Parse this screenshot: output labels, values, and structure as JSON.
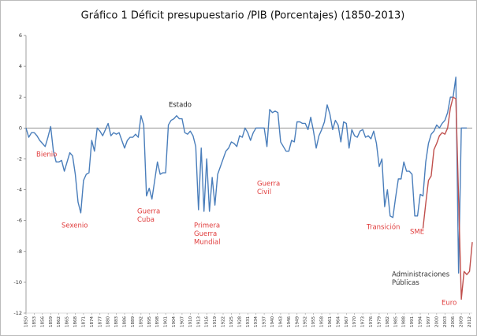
{
  "chart_data": {
    "type": "line",
    "title": "Gráfico 1 Déficit presupuestario /PIB (Porcentajes) (1850-2013)",
    "x": [
      1850,
      1851,
      1852,
      1853,
      1854,
      1855,
      1856,
      1857,
      1858,
      1859,
      1860,
      1861,
      1862,
      1863,
      1864,
      1865,
      1866,
      1867,
      1868,
      1869,
      1870,
      1871,
      1872,
      1873,
      1874,
      1875,
      1876,
      1877,
      1878,
      1879,
      1880,
      1881,
      1882,
      1883,
      1884,
      1885,
      1886,
      1887,
      1888,
      1889,
      1890,
      1891,
      1892,
      1893,
      1894,
      1895,
      1896,
      1897,
      1898,
      1899,
      1900,
      1901,
      1902,
      1903,
      1904,
      1905,
      1906,
      1907,
      1908,
      1909,
      1910,
      1911,
      1912,
      1913,
      1914,
      1915,
      1916,
      1917,
      1918,
      1919,
      1920,
      1921,
      1922,
      1923,
      1924,
      1925,
      1926,
      1927,
      1928,
      1929,
      1930,
      1931,
      1932,
      1933,
      1934,
      1935,
      1936,
      1937,
      1938,
      1939,
      1940,
      1941,
      1942,
      1943,
      1944,
      1945,
      1946,
      1947,
      1948,
      1949,
      1950,
      1951,
      1952,
      1953,
      1954,
      1955,
      1956,
      1957,
      1958,
      1959,
      1960,
      1961,
      1962,
      1963,
      1964,
      1965,
      1966,
      1967,
      1968,
      1969,
      1970,
      1971,
      1972,
      1973,
      1974,
      1975,
      1976,
      1977,
      1978,
      1979,
      1980,
      1981,
      1982,
      1983,
      1984,
      1985,
      1986,
      1987,
      1988,
      1989,
      1990,
      1991,
      1992,
      1993,
      1994,
      1995,
      1996,
      1997,
      1998,
      1999,
      2000,
      2001,
      2002,
      2003,
      2004,
      2005,
      2006,
      2007,
      2008,
      2009,
      2010,
      2011,
      2012,
      2013
    ],
    "series": [
      {
        "color": "#4a7ebb",
        "values": [
          0,
          -0.6,
          -0.3,
          -0.3,
          -0.5,
          -0.8,
          -1.0,
          -1.2,
          -0.6,
          0.1,
          -1.5,
          -2.2,
          -2.2,
          -2.1,
          -2.8,
          -2.2,
          -1.6,
          -1.8,
          -3.0,
          -4.8,
          -5.5,
          -3.4,
          -3.0,
          -2.9,
          -0.8,
          -1.5,
          0,
          -0.2,
          -0.5,
          -0.1,
          0.3,
          -0.5,
          -0.3,
          -0.4,
          -0.3,
          -0.8,
          -1.3,
          -0.8,
          -0.6,
          -0.6,
          -0.4,
          -0.6,
          0.8,
          0.2,
          -4.4,
          -3.9,
          -4.6,
          -3.4,
          -2.2,
          -3.0,
          -2.9,
          -2.9,
          0.2,
          0.5,
          0.6,
          0.8,
          0.6,
          0.6,
          -0.3,
          -0.4,
          -0.2,
          -0.5,
          -1.2,
          -5.3,
          -1.3,
          -5.4,
          -2.0,
          -5.4,
          -3.2,
          -5.0,
          -3.0,
          -2.5,
          -2.0,
          -1.5,
          -1.3,
          -0.9,
          -1.0,
          -1.2,
          -0.5,
          -0.6,
          0,
          -0.3,
          -0.8,
          -0.3,
          0,
          0,
          0,
          0,
          -1.2,
          1.2,
          1.0,
          1.1,
          1.0,
          -0.9,
          -1.2,
          -1.5,
          -1.5,
          -0.8,
          -0.9,
          0.4,
          0.4,
          0.3,
          0.3,
          -0.1,
          0.7,
          -0.2,
          -1.3,
          -0.5,
          -0.1,
          0.4,
          1.5,
          0.9,
          -0.1,
          0.5,
          0.2,
          -0.9,
          0.4,
          0.3,
          -1.3,
          -0.1,
          -0.5,
          -0.6,
          -0.2,
          -0.1,
          -0.6,
          -0.5,
          -0.7,
          -0.2,
          -1.0,
          -2.5,
          -2.0,
          -5.1,
          -4.0,
          -5.7,
          -5.8,
          -4.5,
          -3.3,
          -3.3,
          -2.2,
          -2.8,
          -2.8,
          -3.0,
          -5.7,
          -5.7,
          -4.3,
          -4.4,
          -2.2,
          -1.0,
          -0.4,
          -0.2,
          0.2,
          0,
          0.3,
          0.5,
          1.0,
          2.0,
          2.0,
          3.3,
          -9.4,
          0,
          0,
          0,
          null,
          null
        ]
      },
      {
        "color": "#c0504d",
        "values": [
          null,
          null,
          null,
          null,
          null,
          null,
          null,
          null,
          null,
          null,
          null,
          null,
          null,
          null,
          null,
          null,
          null,
          null,
          null,
          null,
          null,
          null,
          null,
          null,
          null,
          null,
          null,
          null,
          null,
          null,
          null,
          null,
          null,
          null,
          null,
          null,
          null,
          null,
          null,
          null,
          null,
          null,
          null,
          null,
          null,
          null,
          null,
          null,
          null,
          null,
          null,
          null,
          null,
          null,
          null,
          null,
          null,
          null,
          null,
          null,
          null,
          null,
          null,
          null,
          null,
          null,
          null,
          null,
          null,
          null,
          null,
          null,
          null,
          null,
          null,
          null,
          null,
          null,
          null,
          null,
          null,
          null,
          null,
          null,
          null,
          null,
          null,
          null,
          null,
          null,
          null,
          null,
          null,
          null,
          null,
          null,
          null,
          null,
          null,
          null,
          null,
          null,
          null,
          null,
          null,
          null,
          null,
          null,
          null,
          null,
          null,
          null,
          null,
          null,
          null,
          null,
          null,
          null,
          null,
          null,
          null,
          null,
          null,
          null,
          null,
          null,
          null,
          null,
          null,
          null,
          null,
          null,
          null,
          null,
          null,
          null,
          null,
          null,
          null,
          null,
          null,
          null,
          null,
          null,
          null,
          -6.5,
          -4.9,
          -3.4,
          -3.1,
          -1.4,
          -1.0,
          -0.5,
          -0.3,
          -0.4,
          0,
          1.3,
          2.0,
          1.9,
          -4.5,
          -11.1,
          -9.3,
          -9.5,
          -9.3,
          -7.4
        ]
      }
    ],
    "xlim": [
      1850,
      2013
    ],
    "xticks": [
      1850,
      1853,
      1856,
      1859,
      1862,
      1865,
      1868,
      1871,
      1874,
      1877,
      1880,
      1883,
      1886,
      1889,
      1892,
      1895,
      1898,
      1901,
      1904,
      1907,
      1910,
      1913,
      1916,
      1919,
      1922,
      1925,
      1928,
      1931,
      1934,
      1937,
      1940,
      1943,
      1946,
      1949,
      1952,
      1955,
      1958,
      1961,
      1964,
      1967,
      1970,
      1973,
      1976,
      1979,
      1982,
      1985,
      1988,
      1991,
      1994,
      1997,
      2000,
      2003,
      2006,
      2009,
      2012
    ],
    "ylim": [
      -12,
      6
    ],
    "yticks": [
      -12,
      -10,
      -8,
      -6,
      -4,
      -2,
      0,
      2,
      4,
      6
    ],
    "annotations": [
      {
        "lines": [
          "Bienio"
        ],
        "color": "#e03c3c"
      },
      {
        "lines": [
          "Sexenio"
        ],
        "color": "#e03c3c"
      },
      {
        "lines": [
          "Guerra",
          "Cuba"
        ],
        "color": "#e03c3c"
      },
      {
        "lines": [
          "Estado"
        ],
        "color": "#222222"
      },
      {
        "lines": [
          "Primera",
          "Guerra",
          "Mundial"
        ],
        "color": "#e03c3c"
      },
      {
        "lines": [
          "Guerra",
          "Civil"
        ],
        "color": "#e03c3c"
      },
      {
        "lines": [
          "Transición"
        ],
        "color": "#e03c3c"
      },
      {
        "lines": [
          "SME"
        ],
        "color": "#e03c3c"
      },
      {
        "lines": [
          "Administraciones",
          "Públicas"
        ],
        "color": "#333333"
      },
      {
        "lines": [
          "Euro"
        ],
        "color": "#e03c3c"
      }
    ]
  }
}
